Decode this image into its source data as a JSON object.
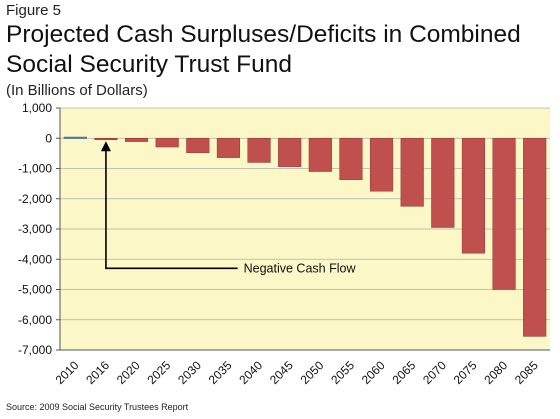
{
  "header": {
    "figure_label": "Figure 5",
    "title": "Projected Cash Surpluses/Deficits in Combined Social Security Trust Fund",
    "subtitle": "(In Billions of Dollars)"
  },
  "footer": {
    "source": "Source: 2009 Social Security Trustees Report"
  },
  "colors": {
    "plot_background": "#fbf7c6",
    "bar_negative": "#c0504d",
    "bar_positive": "#4f81bd",
    "gridline": "#b0b0b0"
  },
  "chart_data": {
    "type": "bar",
    "categories": [
      "2010",
      "2016",
      "2020",
      "2025",
      "2030",
      "2035",
      "2040",
      "2045",
      "2050",
      "2055",
      "2060",
      "2065",
      "2070",
      "2075",
      "2080",
      "2085"
    ],
    "values": [
      40,
      -20,
      -110,
      -290,
      -480,
      -640,
      -800,
      -940,
      -1100,
      -1370,
      -1750,
      -2250,
      -2950,
      -3800,
      -5000,
      -6550
    ],
    "yticks": [
      1000,
      0,
      -1000,
      -2000,
      -3000,
      -4000,
      -5000,
      -6000,
      -7000
    ],
    "ytick_labels": [
      "1,000",
      "0",
      "-1,000",
      "-2,000",
      "-3,000",
      "-4,000",
      "-5,000",
      "-6,000",
      "-7,000"
    ],
    "ylim": [
      -7000,
      1000
    ],
    "grid": true,
    "legend": "none",
    "annotation": {
      "text": "Negative Cash Flow",
      "category": "2016"
    }
  }
}
